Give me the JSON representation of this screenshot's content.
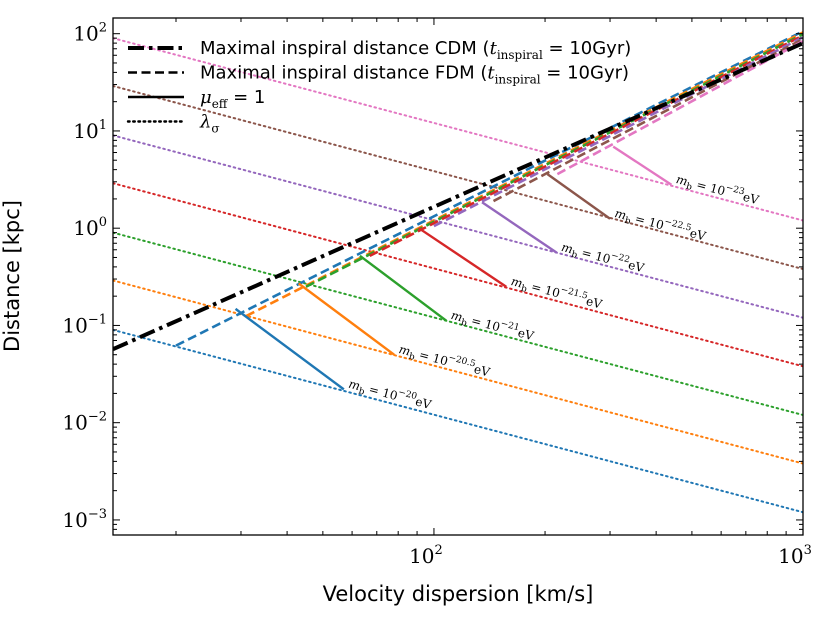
{
  "chart_data": {
    "type": "line",
    "xscale": "log",
    "yscale": "log",
    "xlim": [
      13.5,
      1000
    ],
    "ylim": [
      0.0007,
      145
    ],
    "xlabel": "Velocity dispersion [km/s]",
    "ylabel": "Distance [kpc]",
    "x_ticks": [
      {
        "base": "10",
        "exp": "2",
        "value": 100
      },
      {
        "base": "10",
        "exp": "3",
        "value": 1000
      }
    ],
    "y_ticks": [
      {
        "base": "10",
        "exp": "−3",
        "value": 0.001
      },
      {
        "base": "10",
        "exp": "−2",
        "value": 0.01
      },
      {
        "base": "10",
        "exp": "−1",
        "value": 0.1
      },
      {
        "base": "10",
        "exp": "0",
        "value": 1
      },
      {
        "base": "10",
        "exp": "1",
        "value": 10
      },
      {
        "base": "10",
        "exp": "2",
        "value": 100
      }
    ],
    "legend": {
      "placement": "top-left",
      "entries": [
        {
          "style": "dashdot",
          "text_before": "Maximal inspiral distance CDM (",
          "math": "t",
          "sub": "inspiral",
          "text_after": " = 10Gyr)"
        },
        {
          "style": "dashed",
          "text_before": "Maximal inspiral distance FDM (",
          "math": "t",
          "sub": "inspiral",
          "text_after": " = 10Gyr)"
        },
        {
          "style": "solid",
          "text_before": "",
          "math": "μ",
          "sub": "eff",
          "text_after": " = 1"
        },
        {
          "style": "dotted",
          "text_before": "",
          "math": "λ",
          "sub": "σ",
          "text_after": ""
        }
      ]
    },
    "cdm_line": {
      "name": "Maximal inspiral distance CDM",
      "color": "#000000",
      "x": [
        13.5,
        1000
      ],
      "y": [
        0.057,
        80
      ]
    },
    "series": [
      {
        "name": "m_b = 10^-20 eV",
        "exp_label": "−20",
        "color": "#1f77b4",
        "dotted": {
          "x": [
            13.5,
            1000
          ],
          "y": [
            0.09,
            0.0012
          ]
        },
        "dashed": {
          "x": [
            20,
            1000
          ],
          "y": [
            0.062,
            106
          ]
        },
        "solid": {
          "x": [
            29,
            57
          ],
          "y": [
            0.148,
            0.022
          ]
        }
      },
      {
        "name": "m_b = 10^-20.5 eV",
        "exp_label": "−20.5",
        "color": "#ff7f0e",
        "dotted": {
          "x": [
            13.5,
            1000
          ],
          "y": [
            0.29,
            0.0038
          ]
        },
        "dashed": {
          "x": [
            31,
            1000
          ],
          "y": [
            0.125,
            103
          ]
        },
        "solid": {
          "x": [
            43,
            78
          ],
          "y": [
            0.27,
            0.05
          ]
        }
      },
      {
        "name": "m_b = 10^-21 eV",
        "exp_label": "−21",
        "color": "#2ca02c",
        "dotted": {
          "x": [
            13.5,
            1000
          ],
          "y": [
            0.9,
            0.012
          ]
        },
        "dashed": {
          "x": [
            45,
            1000
          ],
          "y": [
            0.25,
            99
          ]
        },
        "solid": {
          "x": [
            63,
            108
          ],
          "y": [
            0.52,
            0.112
          ]
        }
      },
      {
        "name": "m_b = 10^-21.5 eV",
        "exp_label": "−21.5",
        "color": "#d62728",
        "dotted": {
          "x": [
            13.5,
            1000
          ],
          "y": [
            2.9,
            0.038
          ]
        },
        "dashed": {
          "x": [
            67,
            1000
          ],
          "y": [
            0.52,
            96
          ]
        },
        "solid": {
          "x": [
            91,
            157
          ],
          "y": [
            1.0,
            0.25
          ]
        }
      },
      {
        "name": "m_b = 10^-22 eV",
        "exp_label": "−22",
        "color": "#9467bd",
        "dotted": {
          "x": [
            13.5,
            1000
          ],
          "y": [
            9,
            0.12
          ]
        },
        "dashed": {
          "x": [
            100,
            1000
          ],
          "y": [
            1.05,
            92
          ]
        },
        "solid": {
          "x": [
            135,
            215
          ],
          "y": [
            1.85,
            0.56
          ]
        }
      },
      {
        "name": "m_b = 10^-22.5 eV",
        "exp_label": "−22.5",
        "color": "#8c564b",
        "dotted": {
          "x": [
            13.5,
            1000
          ],
          "y": [
            29,
            0.38
          ]
        },
        "dashed": {
          "x": [
            145,
            1000
          ],
          "y": [
            1.9,
            88
          ]
        },
        "solid": {
          "x": [
            203,
            300
          ],
          "y": [
            3.6,
            1.25
          ]
        }
      },
      {
        "name": "m_b = 10^-23 eV",
        "exp_label": "−23",
        "color": "#e377c2",
        "dotted": {
          "x": [
            13.5,
            1000
          ],
          "y": [
            90,
            1.2
          ]
        },
        "dashed": {
          "x": [
            216,
            1000
          ],
          "y": [
            3.6,
            84
          ]
        },
        "solid": {
          "x": [
            306,
            440
          ],
          "y": [
            6.9,
            2.8
          ]
        }
      }
    ]
  }
}
